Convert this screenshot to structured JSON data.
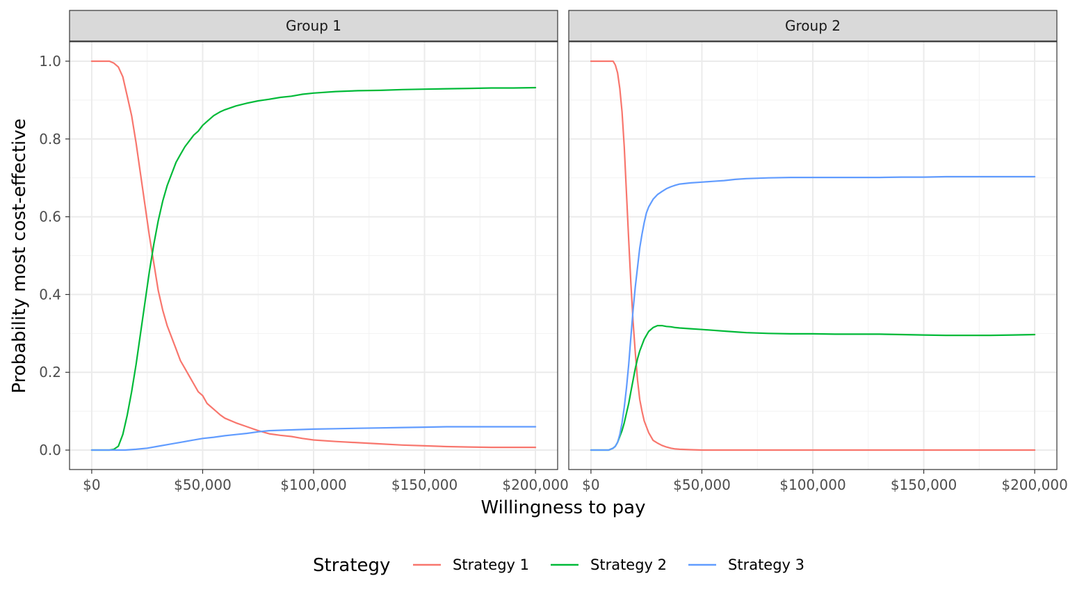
{
  "chart_data": {
    "type": "line",
    "xlabel": "Willingness to pay",
    "ylabel": "Probability most cost-effective",
    "xlim": [
      -10000,
      210000
    ],
    "ylim": [
      -0.05,
      1.05
    ],
    "x_ticks": [
      0,
      50000,
      100000,
      150000,
      200000
    ],
    "x_tick_labels": [
      "$0",
      "$50,000",
      "$100,000",
      "$150,000",
      "$200,000"
    ],
    "y_ticks": [
      0,
      0.2,
      0.4,
      0.6,
      0.8,
      1.0
    ],
    "y_tick_labels": [
      "0.0",
      "0.2",
      "0.4",
      "0.6",
      "0.8",
      "1.0"
    ],
    "grid": true,
    "legend": {
      "title": "Strategy",
      "position": "bottom",
      "entries": [
        {
          "name": "Strategy 1",
          "color": "#F8766D"
        },
        {
          "name": "Strategy 2",
          "color": "#00BA38"
        },
        {
          "name": "Strategy 3",
          "color": "#619CFF"
        }
      ]
    },
    "panels": [
      {
        "title": "Group 1",
        "series": [
          {
            "name": "Strategy 1",
            "color": "#F8766D",
            "x": [
              0,
              5000,
              8000,
              10000,
              12000,
              14000,
              16000,
              18000,
              20000,
              22000,
              24000,
              26000,
              28000,
              30000,
              32000,
              34000,
              36000,
              38000,
              40000,
              42000,
              44000,
              46000,
              48000,
              50000,
              52000,
              55000,
              58000,
              60000,
              65000,
              70000,
              75000,
              80000,
              85000,
              90000,
              95000,
              100000,
              110000,
              120000,
              130000,
              140000,
              150000,
              160000,
              170000,
              180000,
              190000,
              200000
            ],
            "y": [
              1.0,
              1.0,
              1.0,
              0.995,
              0.985,
              0.96,
              0.91,
              0.86,
              0.79,
              0.71,
              0.63,
              0.55,
              0.48,
              0.41,
              0.36,
              0.32,
              0.29,
              0.26,
              0.23,
              0.21,
              0.19,
              0.17,
              0.15,
              0.14,
              0.12,
              0.105,
              0.09,
              0.082,
              0.07,
              0.06,
              0.05,
              0.042,
              0.038,
              0.035,
              0.03,
              0.026,
              0.022,
              0.019,
              0.016,
              0.013,
              0.011,
              0.009,
              0.008,
              0.007,
              0.007,
              0.007
            ]
          },
          {
            "name": "Strategy 2",
            "color": "#00BA38",
            "x": [
              0,
              5000,
              8000,
              10000,
              12000,
              14000,
              16000,
              18000,
              20000,
              22000,
              24000,
              26000,
              28000,
              30000,
              32000,
              34000,
              36000,
              38000,
              40000,
              42000,
              44000,
              46000,
              48000,
              50000,
              52000,
              55000,
              58000,
              60000,
              65000,
              70000,
              75000,
              80000,
              85000,
              90000,
              95000,
              100000,
              110000,
              120000,
              130000,
              140000,
              150000,
              160000,
              170000,
              180000,
              190000,
              200000
            ],
            "y": [
              0.0,
              0.0,
              0.0,
              0.002,
              0.01,
              0.04,
              0.09,
              0.15,
              0.22,
              0.3,
              0.38,
              0.46,
              0.53,
              0.59,
              0.64,
              0.68,
              0.71,
              0.74,
              0.76,
              0.78,
              0.795,
              0.81,
              0.82,
              0.835,
              0.845,
              0.86,
              0.87,
              0.875,
              0.885,
              0.892,
              0.898,
              0.902,
              0.907,
              0.91,
              0.915,
              0.918,
              0.922,
              0.924,
              0.925,
              0.927,
              0.928,
              0.929,
              0.93,
              0.931,
              0.931,
              0.932
            ]
          },
          {
            "name": "Strategy 3",
            "color": "#619CFF",
            "x": [
              0,
              10000,
              15000,
              20000,
              25000,
              30000,
              35000,
              40000,
              45000,
              50000,
              55000,
              60000,
              65000,
              70000,
              75000,
              80000,
              90000,
              100000,
              110000,
              120000,
              130000,
              140000,
              150000,
              160000,
              170000,
              180000,
              190000,
              200000
            ],
            "y": [
              0.0,
              0.0,
              0.0,
              0.002,
              0.005,
              0.01,
              0.015,
              0.02,
              0.025,
              0.03,
              0.033,
              0.037,
              0.04,
              0.043,
              0.047,
              0.05,
              0.052,
              0.054,
              0.055,
              0.056,
              0.057,
              0.058,
              0.059,
              0.06,
              0.06,
              0.06,
              0.06,
              0.06
            ]
          }
        ]
      },
      {
        "title": "Group 2",
        "series": [
          {
            "name": "Strategy 1",
            "color": "#F8766D",
            "x": [
              0,
              5000,
              8000,
              10000,
              11000,
              12000,
              13000,
              14000,
              15000,
              16000,
              17000,
              18000,
              19000,
              20000,
              21000,
              22000,
              23000,
              24000,
              25000,
              26000,
              27000,
              28000,
              30000,
              32000,
              34000,
              36000,
              38000,
              40000,
              45000,
              50000,
              60000,
              80000,
              100000,
              150000,
              200000
            ],
            "y": [
              1.0,
              1.0,
              1.0,
              1.0,
              0.99,
              0.97,
              0.93,
              0.87,
              0.78,
              0.66,
              0.54,
              0.43,
              0.33,
              0.25,
              0.18,
              0.13,
              0.1,
              0.075,
              0.06,
              0.045,
              0.035,
              0.025,
              0.018,
              0.012,
              0.008,
              0.005,
              0.003,
              0.002,
              0.001,
              0.0,
              0.0,
              0.0,
              0.0,
              0.0,
              0.0
            ]
          },
          {
            "name": "Strategy 2",
            "color": "#00BA38",
            "x": [
              0,
              8000,
              10000,
              11000,
              12000,
              13000,
              14000,
              15000,
              16000,
              17000,
              18000,
              19000,
              20000,
              21000,
              22000,
              23000,
              24000,
              25000,
              26000,
              28000,
              30000,
              32000,
              34000,
              36000,
              38000,
              40000,
              45000,
              50000,
              55000,
              60000,
              65000,
              70000,
              80000,
              90000,
              100000,
              110000,
              120000,
              130000,
              140000,
              150000,
              160000,
              170000,
              180000,
              190000,
              200000
            ],
            "y": [
              0.0,
              0.0,
              0.005,
              0.01,
              0.02,
              0.035,
              0.05,
              0.07,
              0.095,
              0.12,
              0.15,
              0.18,
              0.21,
              0.235,
              0.255,
              0.27,
              0.285,
              0.295,
              0.305,
              0.315,
              0.32,
              0.32,
              0.318,
              0.317,
              0.315,
              0.314,
              0.312,
              0.31,
              0.308,
              0.306,
              0.304,
              0.302,
              0.3,
              0.299,
              0.299,
              0.298,
              0.298,
              0.298,
              0.297,
              0.296,
              0.295,
              0.295,
              0.295,
              0.296,
              0.297
            ]
          },
          {
            "name": "Strategy 3",
            "color": "#619CFF",
            "x": [
              0,
              8000,
              10000,
              11000,
              12000,
              13000,
              14000,
              15000,
              16000,
              17000,
              18000,
              19000,
              20000,
              21000,
              22000,
              23000,
              24000,
              25000,
              26000,
              28000,
              30000,
              32000,
              34000,
              36000,
              38000,
              40000,
              45000,
              50000,
              55000,
              60000,
              65000,
              70000,
              80000,
              90000,
              100000,
              110000,
              120000,
              130000,
              140000,
              150000,
              160000,
              170000,
              180000,
              190000,
              200000
            ],
            "y": [
              0.0,
              0.0,
              0.005,
              0.01,
              0.02,
              0.04,
              0.07,
              0.11,
              0.16,
              0.22,
              0.29,
              0.36,
              0.42,
              0.47,
              0.52,
              0.555,
              0.585,
              0.61,
              0.625,
              0.645,
              0.657,
              0.665,
              0.672,
              0.677,
              0.681,
              0.684,
              0.687,
              0.689,
              0.691,
              0.693,
              0.696,
              0.698,
              0.7,
              0.701,
              0.701,
              0.701,
              0.701,
              0.701,
              0.702,
              0.702,
              0.703,
              0.703,
              0.703,
              0.703,
              0.703
            ]
          }
        ]
      }
    ]
  }
}
